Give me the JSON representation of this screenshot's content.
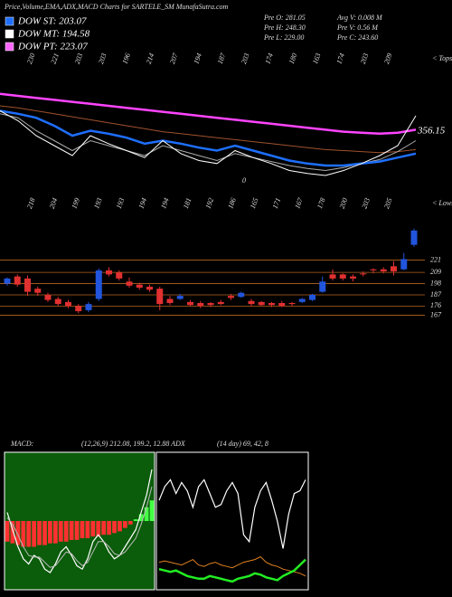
{
  "header": {
    "title": "Price,Volume,EMA,ADX,MACD Charts for SARTELE_SM MunafaSutra.com",
    "legend": [
      {
        "label": "DOW ST: 203.07",
        "color": "#1e6fff"
      },
      {
        "label": "DOW MT: 194.58",
        "color": "#ffffff"
      },
      {
        "label": "DOW PT: 223.07",
        "color": "#ff66ff"
      }
    ],
    "stats": [
      "Pre  O: 281.05",
      "Avg V: 0.008  M",
      "Pre  H: 248.30",
      "Pre  V: 0.56  M",
      "Pre  L: 229.00",
      "Pre  C: 243.60"
    ]
  },
  "chart_data": [
    {
      "type": "line",
      "annotations": [
        "230",
        "221",
        "203",
        "203",
        "196",
        "214",
        "207",
        "194",
        "187",
        "203",
        "174",
        "180",
        "163",
        "174",
        "203",
        "209"
      ],
      "annotation_right": "< Tops",
      "end_label": "356.15",
      "zero_label": "0",
      "ylim": [
        0,
        100
      ],
      "series": [
        {
          "name": "DOW PT",
          "color": "#ff44ff",
          "width": 2.5,
          "values": [
            92,
            90,
            88,
            86,
            84,
            82,
            80,
            78,
            76,
            74,
            72,
            70,
            68,
            66,
            64,
            62,
            60,
            58,
            56,
            54,
            53,
            52,
            53,
            56
          ]
        },
        {
          "name": "brown",
          "color": "#a0522d",
          "width": 1,
          "values": [
            80,
            78,
            75,
            72,
            69,
            66,
            63,
            60,
            57,
            54,
            52,
            50,
            48,
            46,
            44,
            42,
            40,
            38,
            36,
            35,
            34,
            33,
            34,
            36
          ]
        },
        {
          "name": "DOW MT",
          "color": "#aaaaaa",
          "width": 1,
          "values": [
            72,
            68,
            55,
            45,
            35,
            45,
            40,
            35,
            30,
            40,
            35,
            30,
            25,
            32,
            28,
            24,
            20,
            17,
            15,
            18,
            22,
            26,
            34,
            45
          ]
        },
        {
          "name": "DOW ST",
          "color": "#1e6fff",
          "width": 2.5,
          "values": [
            75,
            72,
            68,
            60,
            50,
            55,
            52,
            48,
            42,
            45,
            42,
            38,
            35,
            40,
            35,
            30,
            25,
            22,
            20,
            20,
            22,
            24,
            28,
            32
          ]
        },
        {
          "name": "price",
          "color": "#ffffff",
          "width": 1,
          "values": [
            75,
            65,
            50,
            40,
            30,
            50,
            42,
            35,
            28,
            45,
            32,
            25,
            22,
            35,
            28,
            22,
            15,
            12,
            10,
            15,
            22,
            30,
            40,
            70
          ]
        }
      ]
    },
    {
      "type": "candlestick",
      "annotations": [
        "218",
        "204",
        "199",
        "193",
        "193",
        "194",
        "194",
        "181",
        "192",
        "186",
        "165",
        "171",
        "167",
        "178",
        "200",
        "203",
        "205"
      ],
      "annotation_right": "< Lows",
      "up_color": "#2255dd",
      "down_color": "#e03030",
      "grid_color": "#b8641e",
      "ylim": [
        148,
        272
      ],
      "yticks": [
        221,
        209,
        198,
        187,
        176,
        167
      ],
      "open": [
        198,
        205,
        203,
        193,
        187,
        183,
        180,
        176,
        172,
        183,
        211,
        209,
        200,
        197,
        195,
        193,
        183,
        183,
        180,
        179,
        179,
        180,
        186,
        185,
        181,
        180,
        179,
        179,
        179,
        180,
        182,
        190,
        207,
        207,
        205,
        208,
        212,
        212,
        215,
        212,
        236
      ],
      "high": [
        204,
        207,
        206,
        195,
        189,
        185,
        182,
        178,
        180,
        213,
        214,
        211,
        204,
        199,
        197,
        195,
        186,
        188,
        182,
        181,
        180,
        182,
        188,
        190,
        183,
        181,
        180,
        181,
        180,
        184,
        188,
        205,
        212,
        208,
        207,
        210,
        213,
        214,
        220,
        228,
        252
      ],
      "low": [
        196,
        195,
        186,
        186,
        180,
        176,
        174,
        169,
        170,
        181,
        205,
        201,
        194,
        192,
        190,
        172,
        177,
        182,
        176,
        174,
        175,
        177,
        182,
        184,
        176,
        176,
        175,
        175,
        176,
        179,
        181,
        189,
        201,
        201,
        200,
        205,
        208,
        208,
        206,
        211,
        234
      ],
      "close": [
        203,
        197,
        190,
        189,
        182,
        178,
        176,
        171,
        178,
        211,
        207,
        203,
        196,
        194,
        192,
        178,
        179,
        186,
        177,
        176,
        177,
        178,
        184,
        189,
        178,
        177,
        177,
        176,
        178,
        183,
        187,
        200,
        203,
        203,
        203,
        207,
        211,
        210,
        210,
        222,
        250
      ]
    },
    {
      "type": "macd",
      "title": "MACD:",
      "params": "(12,26,9) 212.08, 199.2, 12.88 ADX",
      "background": "#0b5c0b",
      "ylim": [
        -40,
        40
      ],
      "histogram": [
        -12,
        -13,
        -14,
        -15,
        -15,
        -15,
        -14,
        -14,
        -13,
        -13,
        -12,
        -12,
        -11,
        -11,
        -10,
        -10,
        -9,
        -9,
        -8,
        -8,
        -7,
        -6,
        -4,
        -2,
        1,
        4,
        8,
        12
      ],
      "neg_color": "#ff3030",
      "pos_color": "#44ff44",
      "series": [
        {
          "name": "macd",
          "color": "#ffffff",
          "width": 1.2,
          "values": [
            5,
            -5,
            -15,
            -22,
            -25,
            -20,
            -22,
            -28,
            -30,
            -25,
            -18,
            -15,
            -20,
            -26,
            -28,
            -22,
            -12,
            -8,
            -12,
            -18,
            -22,
            -20,
            -15,
            -10,
            -5,
            5,
            15,
            30
          ]
        },
        {
          "name": "signal",
          "color": "#bbbbbb",
          "width": 1,
          "values": [
            2,
            -2,
            -8,
            -15,
            -20,
            -21,
            -21,
            -24,
            -27,
            -26,
            -22,
            -18,
            -19,
            -23,
            -26,
            -24,
            -18,
            -12,
            -12,
            -15,
            -19,
            -20,
            -18,
            -14,
            -10,
            -2,
            8,
            20
          ]
        }
      ]
    },
    {
      "type": "line",
      "title": "(14 day) 69, 42, 8",
      "background": "#000000",
      "ylim": [
        0,
        100
      ],
      "series": [
        {
          "name": "di-plus",
          "color": "#ffffff",
          "width": 1.2,
          "values": [
            65,
            75,
            80,
            70,
            78,
            72,
            60,
            75,
            80,
            70,
            60,
            62,
            72,
            78,
            70,
            40,
            35,
            60,
            72,
            78,
            65,
            50,
            30,
            55,
            70,
            72,
            80
          ]
        },
        {
          "name": "di-minus",
          "color": "#e08020",
          "width": 1,
          "values": [
            20,
            21,
            20,
            19,
            18,
            20,
            22,
            18,
            17,
            19,
            20,
            18,
            17,
            16,
            18,
            20,
            21,
            22,
            24,
            20,
            18,
            17,
            15,
            14,
            13,
            12,
            10
          ]
        },
        {
          "name": "adx",
          "color": "#22ee22",
          "width": 2.5,
          "values": [
            15,
            14,
            13,
            14,
            12,
            10,
            9,
            8,
            8,
            10,
            9,
            8,
            7,
            6,
            8,
            9,
            10,
            12,
            11,
            9,
            8,
            7,
            10,
            12,
            14,
            18,
            22
          ]
        }
      ]
    }
  ]
}
